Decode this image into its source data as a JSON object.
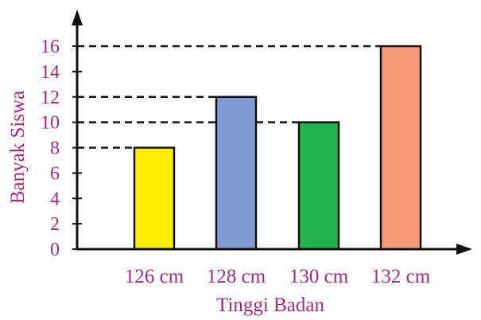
{
  "chart_data": {
    "type": "bar",
    "title": "",
    "xlabel": "Tinggi Badan",
    "ylabel": "Banyak Siswa",
    "categories": [
      "126 cm",
      "128 cm",
      "130 cm",
      "132 cm"
    ],
    "values": [
      8,
      12,
      10,
      16
    ],
    "bar_colors": [
      "#ffee00",
      "#7f9cd4",
      "#21b24b",
      "#f79b79"
    ],
    "ylim": [
      0,
      16
    ],
    "yticks": [
      0,
      2,
      4,
      6,
      8,
      10,
      12,
      14,
      16
    ],
    "reference_lines": "dashed lines from y-axis to top of each bar",
    "grid": false,
    "label_color": "#a8287f",
    "axis_color": "#111111"
  }
}
